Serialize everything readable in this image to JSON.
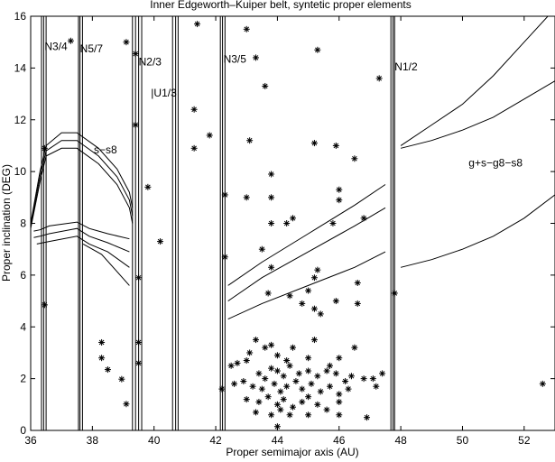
{
  "chart_data": {
    "type": "scatter",
    "title": "Inner Edgeworth–Kuiper belt, syntetic proper elements",
    "xlabel": "Proper semimajor axis (AU)",
    "ylabel": "Proper inclination (DEG)",
    "xlim": [
      36,
      53
    ],
    "ylim": [
      0,
      16
    ],
    "xticks": [
      36,
      38,
      40,
      42,
      44,
      46,
      48,
      50,
      52
    ],
    "yticks": [
      0,
      2,
      4,
      6,
      8,
      10,
      12,
      14,
      16
    ],
    "grid": false,
    "legend": "none",
    "annotations": [
      {
        "text": "N3/4",
        "x": 36.45,
        "y": 14.7
      },
      {
        "text": "N5/7",
        "x": 37.6,
        "y": 14.6
      },
      {
        "text": "N2/3",
        "x": 39.5,
        "y": 14.1
      },
      {
        "text": "|U1/3",
        "x": 39.9,
        "y": 12.9
      },
      {
        "text": "N3/5",
        "x": 42.25,
        "y": 14.2
      },
      {
        "text": "N1/2",
        "x": 47.8,
        "y": 13.9
      },
      {
        "text": "s−s8",
        "x": 38.05,
        "y": 10.7
      },
      {
        "text": "g+s−g8−s8",
        "x": 50.2,
        "y": 10.2
      }
    ],
    "resonances": [
      {
        "name": "N3/4",
        "x": [
          36.35,
          36.42,
          36.5
        ]
      },
      {
        "name": "N5/7",
        "x": [
          37.55,
          37.6,
          37.68
        ]
      },
      {
        "name": "N2/3",
        "x": [
          39.3,
          39.4,
          39.5,
          39.6
        ]
      },
      {
        "name": "U1/3",
        "x": [
          40.6,
          40.7,
          40.78
        ]
      },
      {
        "name": "N3/5",
        "x": [
          42.15,
          42.22,
          42.3
        ]
      },
      {
        "name": "N1/2",
        "x": [
          47.68,
          47.75,
          47.8
        ]
      }
    ],
    "secular_curves": [
      {
        "name": "s-s8",
        "points": [
          [
            36.0,
            8.0
          ],
          [
            36.3,
            10.0
          ],
          [
            36.5,
            11.0
          ],
          [
            37.0,
            11.5
          ],
          [
            37.5,
            11.5
          ],
          [
            38.2,
            10.9
          ],
          [
            38.8,
            10.1
          ],
          [
            39.2,
            9.2
          ],
          [
            39.3,
            8.6
          ]
        ]
      },
      {
        "name": "s-s8",
        "points": [
          [
            36.0,
            7.9
          ],
          [
            36.3,
            9.8
          ],
          [
            36.5,
            10.8
          ],
          [
            37.0,
            11.2
          ],
          [
            37.5,
            11.2
          ],
          [
            38.2,
            10.6
          ],
          [
            38.8,
            9.8
          ],
          [
            39.2,
            8.9
          ],
          [
            39.3,
            8.3
          ]
        ]
      },
      {
        "name": "s-s8",
        "points": [
          [
            36.0,
            7.8
          ],
          [
            36.3,
            9.6
          ],
          [
            36.5,
            10.6
          ],
          [
            37.0,
            10.9
          ],
          [
            37.5,
            10.9
          ],
          [
            38.2,
            10.3
          ],
          [
            38.8,
            9.5
          ],
          [
            39.2,
            8.6
          ],
          [
            39.3,
            8.0
          ]
        ]
      },
      {
        "name": "s-s8",
        "points": [
          [
            36.1,
            7.7
          ],
          [
            36.3,
            7.75
          ],
          [
            36.6,
            7.9
          ],
          [
            37.5,
            8.05
          ],
          [
            37.9,
            7.8
          ],
          [
            38.5,
            7.6
          ],
          [
            39.2,
            7.4
          ]
        ]
      },
      {
        "name": "s-s8",
        "points": [
          [
            36.1,
            7.45
          ],
          [
            36.3,
            7.5
          ],
          [
            36.6,
            7.6
          ],
          [
            37.5,
            7.8
          ],
          [
            37.9,
            7.5
          ],
          [
            38.5,
            7.25
          ],
          [
            39.2,
            6.9
          ]
        ]
      },
      {
        "name": "s-s8",
        "points": [
          [
            36.2,
            7.2
          ],
          [
            36.6,
            7.3
          ],
          [
            37.5,
            7.5
          ],
          [
            37.9,
            7.2
          ],
          [
            38.5,
            6.9
          ],
          [
            39.2,
            6.3
          ]
        ]
      },
      {
        "name": "s-s8",
        "points": [
          [
            37.7,
            7.2
          ],
          [
            38.3,
            6.8
          ],
          [
            39.2,
            5.6
          ]
        ]
      },
      {
        "name": "g+s-g8-s8",
        "points": [
          [
            42.4,
            5.6
          ],
          [
            43.5,
            6.5
          ],
          [
            45.0,
            7.6
          ],
          [
            46.5,
            8.7
          ],
          [
            47.5,
            9.5
          ]
        ]
      },
      {
        "name": "g+s-g8-s8",
        "points": [
          [
            48.0,
            11.0
          ],
          [
            49.0,
            11.8
          ],
          [
            50.0,
            12.6
          ],
          [
            51.0,
            13.7
          ],
          [
            52.0,
            15.0
          ],
          [
            53.0,
            16.3
          ]
        ]
      },
      {
        "name": "g+s-g8-s8",
        "points": [
          [
            42.4,
            5.0
          ],
          [
            43.5,
            5.9
          ],
          [
            45.0,
            6.9
          ],
          [
            46.5,
            7.9
          ],
          [
            47.5,
            8.6
          ]
        ]
      },
      {
        "name": "g+s-g8-s8",
        "points": [
          [
            48.0,
            10.9
          ],
          [
            49.0,
            11.2
          ],
          [
            50.0,
            11.6
          ],
          [
            51.0,
            12.1
          ],
          [
            52.0,
            12.8
          ],
          [
            53.0,
            13.5
          ]
        ]
      },
      {
        "name": "g+s-g8-s8",
        "points": [
          [
            42.4,
            4.3
          ],
          [
            43.5,
            4.9
          ],
          [
            45.0,
            5.6
          ],
          [
            46.5,
            6.3
          ],
          [
            47.5,
            6.9
          ]
        ]
      },
      {
        "name": "g+s-g8-s8",
        "points": [
          [
            48.0,
            6.3
          ],
          [
            49.0,
            6.6
          ],
          [
            50.0,
            7.0
          ],
          [
            51.0,
            7.5
          ],
          [
            52.0,
            8.2
          ],
          [
            53.0,
            9.1
          ]
        ]
      }
    ],
    "points": [
      {
        "x": 36.45,
        "y": 10.9
      },
      {
        "x": 36.45,
        "y": 4.85
      },
      {
        "x": 37.3,
        "y": 15.05
      },
      {
        "x": 38.3,
        "y": 3.4
      },
      {
        "x": 38.3,
        "y": 2.8
      },
      {
        "x": 38.5,
        "y": 2.35
      },
      {
        "x": 38.95,
        "y": 1.98
      },
      {
        "x": 39.1,
        "y": 1.02
      },
      {
        "x": 39.1,
        "y": 15.0
      },
      {
        "x": 39.4,
        "y": 14.55
      },
      {
        "x": 39.4,
        "y": 11.8
      },
      {
        "x": 39.8,
        "y": 9.4
      },
      {
        "x": 40.2,
        "y": 7.3
      },
      {
        "x": 39.5,
        "y": 5.9
      },
      {
        "x": 39.5,
        "y": 3.4
      },
      {
        "x": 39.5,
        "y": 2.6
      },
      {
        "x": 41.4,
        "y": 15.7
      },
      {
        "x": 41.3,
        "y": 12.4
      },
      {
        "x": 41.3,
        "y": 10.9
      },
      {
        "x": 41.8,
        "y": 11.4
      },
      {
        "x": 43.0,
        "y": 15.5
      },
      {
        "x": 43.3,
        "y": 14.4
      },
      {
        "x": 43.6,
        "y": 13.3
      },
      {
        "x": 45.3,
        "y": 14.7
      },
      {
        "x": 47.3,
        "y": 13.6
      },
      {
        "x": 43.1,
        "y": 11.2
      },
      {
        "x": 45.2,
        "y": 11.1
      },
      {
        "x": 45.9,
        "y": 11.0
      },
      {
        "x": 46.5,
        "y": 10.5
      },
      {
        "x": 42.3,
        "y": 9.1
      },
      {
        "x": 43.0,
        "y": 9.0
      },
      {
        "x": 43.8,
        "y": 9.9
      },
      {
        "x": 43.8,
        "y": 9.0
      },
      {
        "x": 46.0,
        "y": 9.3
      },
      {
        "x": 46.0,
        "y": 8.9
      },
      {
        "x": 43.8,
        "y": 8.0
      },
      {
        "x": 44.3,
        "y": 8.0
      },
      {
        "x": 44.5,
        "y": 8.2
      },
      {
        "x": 45.8,
        "y": 8.0
      },
      {
        "x": 46.8,
        "y": 8.2
      },
      {
        "x": 43.5,
        "y": 7.0
      },
      {
        "x": 42.3,
        "y": 6.7
      },
      {
        "x": 43.8,
        "y": 6.3
      },
      {
        "x": 45.3,
        "y": 6.2
      },
      {
        "x": 45.2,
        "y": 5.9
      },
      {
        "x": 46.6,
        "y": 5.7
      },
      {
        "x": 43.7,
        "y": 5.3
      },
      {
        "x": 44.4,
        "y": 5.2
      },
      {
        "x": 44.8,
        "y": 4.9
      },
      {
        "x": 45.0,
        "y": 5.4
      },
      {
        "x": 45.9,
        "y": 5.0
      },
      {
        "x": 46.6,
        "y": 4.9
      },
      {
        "x": 45.2,
        "y": 4.7
      },
      {
        "x": 45.4,
        "y": 4.5
      },
      {
        "x": 47.8,
        "y": 5.3
      },
      {
        "x": 43.3,
        "y": 3.5
      },
      {
        "x": 43.6,
        "y": 3.2
      },
      {
        "x": 43.8,
        "y": 3.3
      },
      {
        "x": 44.5,
        "y": 3.2
      },
      {
        "x": 45.2,
        "y": 3.5
      },
      {
        "x": 46.5,
        "y": 3.2
      },
      {
        "x": 43.1,
        "y": 3.0
      },
      {
        "x": 44.0,
        "y": 2.9
      },
      {
        "x": 44.3,
        "y": 2.7
      },
      {
        "x": 45.0,
        "y": 2.8
      },
      {
        "x": 45.7,
        "y": 2.5
      },
      {
        "x": 46.0,
        "y": 2.8
      },
      {
        "x": 42.5,
        "y": 2.5
      },
      {
        "x": 42.7,
        "y": 2.6
      },
      {
        "x": 43.0,
        "y": 2.7
      },
      {
        "x": 43.4,
        "y": 2.2
      },
      {
        "x": 43.6,
        "y": 2.0
      },
      {
        "x": 43.8,
        "y": 2.4
      },
      {
        "x": 44.0,
        "y": 2.3
      },
      {
        "x": 44.2,
        "y": 2.1
      },
      {
        "x": 44.4,
        "y": 2.5
      },
      {
        "x": 44.7,
        "y": 2.2
      },
      {
        "x": 45.0,
        "y": 2.3
      },
      {
        "x": 45.3,
        "y": 2.1
      },
      {
        "x": 45.6,
        "y": 2.3
      },
      {
        "x": 45.9,
        "y": 2.2
      },
      {
        "x": 46.2,
        "y": 1.9
      },
      {
        "x": 46.4,
        "y": 2.1
      },
      {
        "x": 46.8,
        "y": 2.0
      },
      {
        "x": 47.1,
        "y": 2.0
      },
      {
        "x": 47.4,
        "y": 2.2
      },
      {
        "x": 42.2,
        "y": 1.6
      },
      {
        "x": 42.6,
        "y": 1.8
      },
      {
        "x": 42.9,
        "y": 1.9
      },
      {
        "x": 43.2,
        "y": 1.7
      },
      {
        "x": 43.5,
        "y": 1.6
      },
      {
        "x": 43.9,
        "y": 1.8
      },
      {
        "x": 44.1,
        "y": 1.5
      },
      {
        "x": 44.3,
        "y": 1.7
      },
      {
        "x": 44.6,
        "y": 1.9
      },
      {
        "x": 44.8,
        "y": 1.6
      },
      {
        "x": 45.1,
        "y": 1.8
      },
      {
        "x": 45.4,
        "y": 1.5
      },
      {
        "x": 45.7,
        "y": 1.7
      },
      {
        "x": 46.0,
        "y": 1.4
      },
      {
        "x": 46.3,
        "y": 1.6
      },
      {
        "x": 47.2,
        "y": 1.7
      },
      {
        "x": 43.0,
        "y": 1.2
      },
      {
        "x": 43.4,
        "y": 1.1
      },
      {
        "x": 43.7,
        "y": 1.3
      },
      {
        "x": 44.0,
        "y": 1.0
      },
      {
        "x": 44.2,
        "y": 1.2
      },
      {
        "x": 44.5,
        "y": 0.9
      },
      {
        "x": 44.8,
        "y": 1.1
      },
      {
        "x": 45.0,
        "y": 1.3
      },
      {
        "x": 45.3,
        "y": 1.0
      },
      {
        "x": 45.6,
        "y": 0.8
      },
      {
        "x": 46.0,
        "y": 1.1
      },
      {
        "x": 43.3,
        "y": 0.7
      },
      {
        "x": 43.8,
        "y": 0.6
      },
      {
        "x": 44.1,
        "y": 0.8
      },
      {
        "x": 44.4,
        "y": 0.6
      },
      {
        "x": 45.0,
        "y": 0.6
      },
      {
        "x": 46.0,
        "y": 0.6
      },
      {
        "x": 46.9,
        "y": 0.5
      },
      {
        "x": 44.0,
        "y": 0.15
      },
      {
        "x": 52.6,
        "y": 1.8
      }
    ]
  }
}
